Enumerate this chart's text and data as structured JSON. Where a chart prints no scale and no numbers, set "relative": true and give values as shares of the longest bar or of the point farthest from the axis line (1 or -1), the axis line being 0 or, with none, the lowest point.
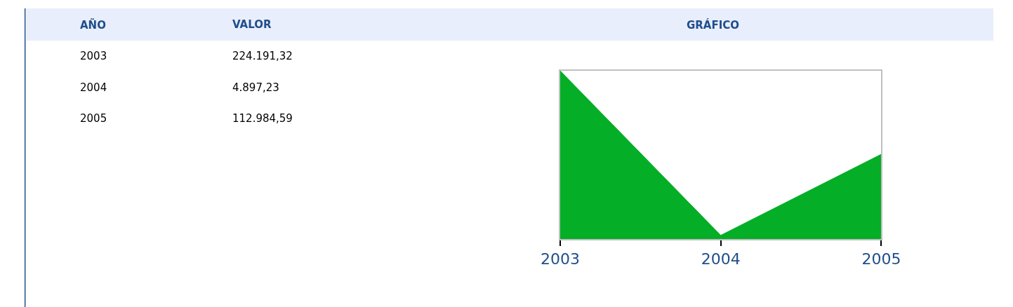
{
  "chart_data": [
    {
      "type": "other",
      "annotations": [
        "AÑO",
        "VALOR",
        "2003",
        "224.191,32",
        "2004",
        "4.897,23",
        "2005",
        "112.984,59"
      ]
    },
    {
      "type": "area",
      "title": "GRÁFICO",
      "categories": [
        "2003",
        "2004",
        "2005"
      ],
      "values": [
        1,
        0.0218,
        0.504
      ],
      "relative": true,
      "color": "#04ae26"
    }
  ]
}
